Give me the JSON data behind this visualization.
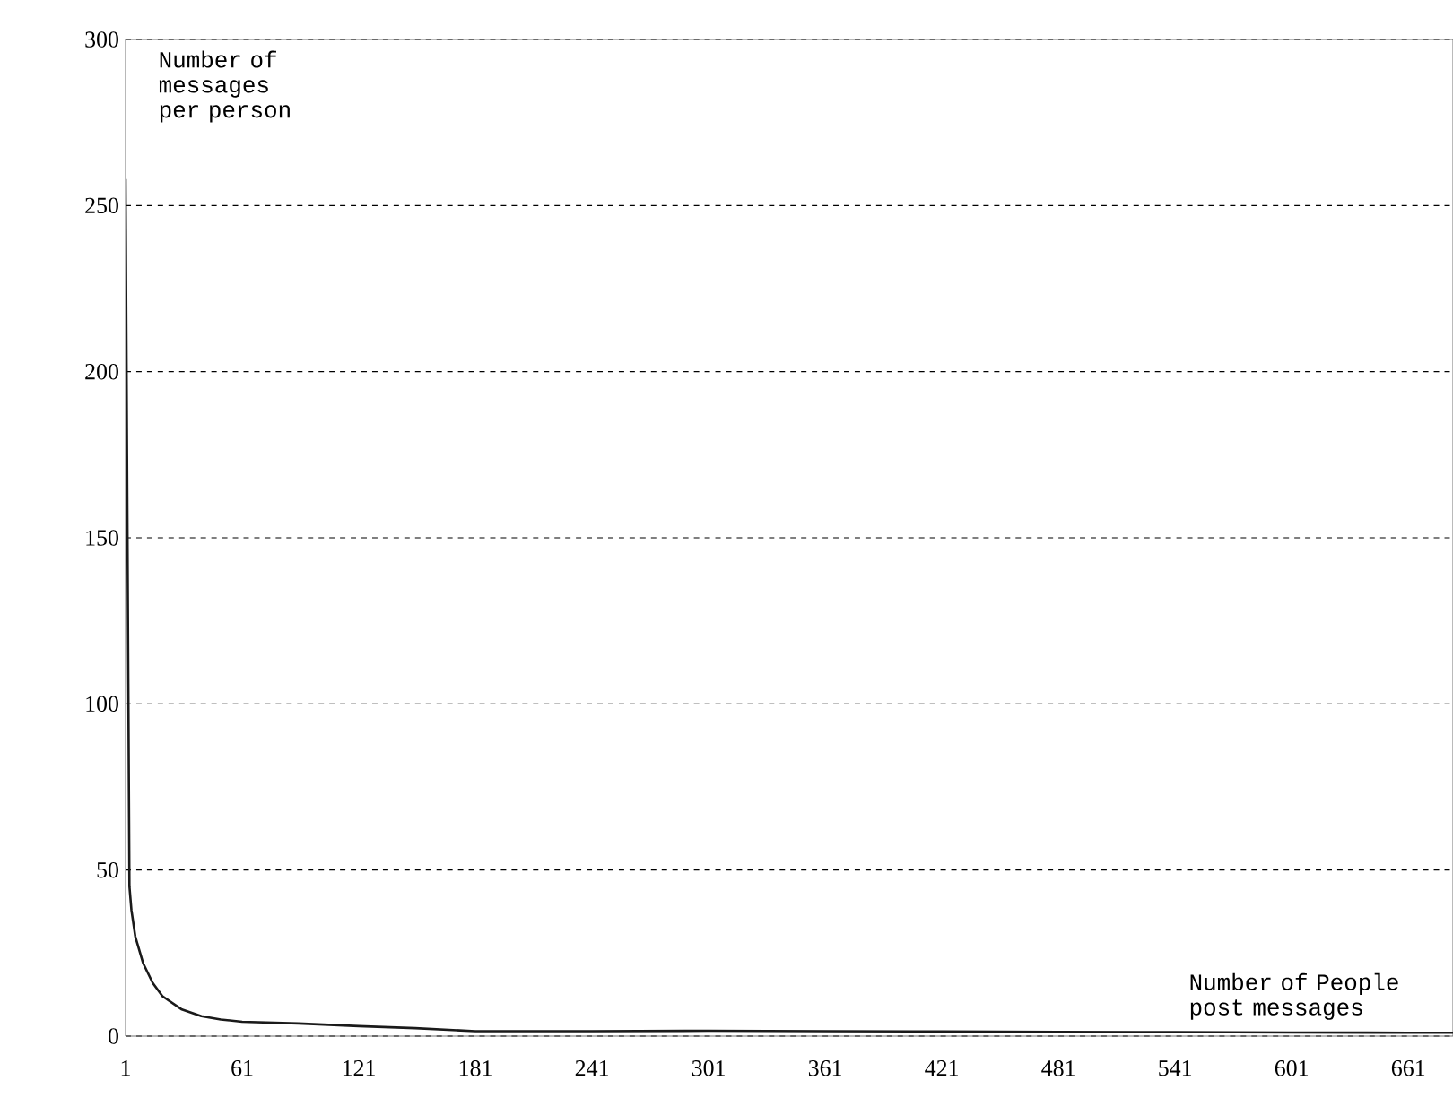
{
  "chart_data": {
    "type": "line",
    "xlabel": "Number of People post messages",
    "ylabel": "Number of messages per person",
    "x": [
      1,
      2,
      3,
      4,
      6,
      10,
      15,
      20,
      30,
      40,
      50,
      61,
      90,
      121,
      150,
      181,
      241,
      301,
      361,
      421,
      481,
      541,
      601,
      661,
      684
    ],
    "series": [
      {
        "color": "#1a1a1a",
        "values": [
          258,
          150,
          45,
          38,
          30,
          22,
          16,
          12,
          8,
          6,
          5,
          4.3,
          3.8,
          3,
          2.4,
          1.5,
          1.5,
          1.6,
          1.5,
          1.4,
          1.3,
          1.2,
          1.1,
          1,
          1
        ]
      }
    ],
    "xlim": [
      1,
      684
    ],
    "ylim": [
      0,
      300
    ],
    "xticks": [
      1,
      61,
      121,
      181,
      241,
      301,
      361,
      421,
      481,
      541,
      601,
      661
    ],
    "yticks": [
      0,
      50,
      100,
      150,
      200,
      250,
      300
    ],
    "grid": "y",
    "marker": "none",
    "line_style": "solid"
  }
}
